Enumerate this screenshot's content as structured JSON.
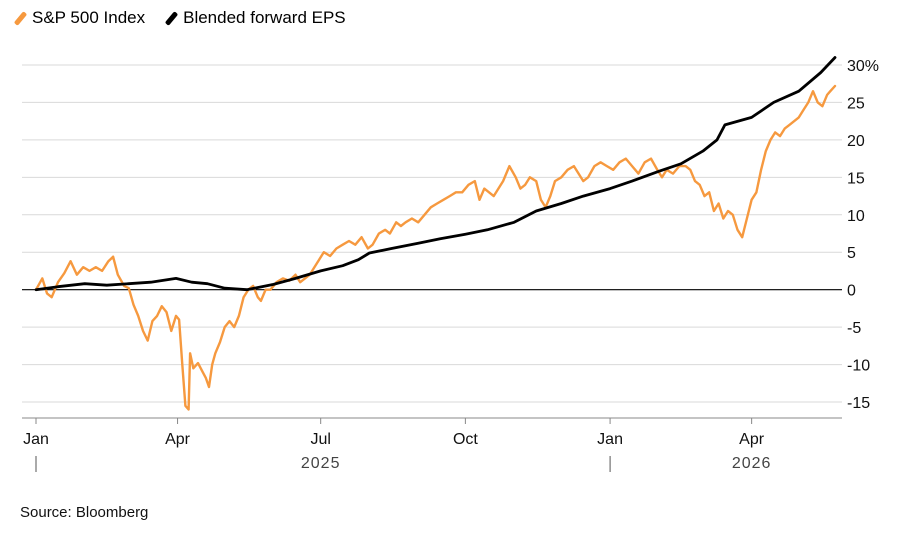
{
  "legend": {
    "items": [
      {
        "label": "S&P 500 Index",
        "color": "#f6993f"
      },
      {
        "label": "Blended forward EPS",
        "color": "#000000"
      }
    ]
  },
  "source": "Source: Bloomberg",
  "chart_data": {
    "type": "line",
    "title": "",
    "xlabel": "",
    "ylabel": "",
    "unit": "%",
    "ylim": [
      -17,
      32
    ],
    "y_ticks": [
      {
        "value": 30,
        "label": "30%"
      },
      {
        "value": 25,
        "label": "25"
      },
      {
        "value": 20,
        "label": "20"
      },
      {
        "value": 15,
        "label": "15"
      },
      {
        "value": 10,
        "label": "10"
      },
      {
        "value": 5,
        "label": "5"
      },
      {
        "value": 0,
        "label": "0"
      },
      {
        "value": -5,
        "label": "-5"
      },
      {
        "value": -10,
        "label": "-10"
      },
      {
        "value": -15,
        "label": "-15"
      }
    ],
    "x_ticks": [
      {
        "date": "2025-01-01",
        "label": "Jan"
      },
      {
        "date": "2025-04-01",
        "label": "Apr"
      },
      {
        "date": "2025-07-01",
        "label": "Jul"
      },
      {
        "date": "2025-10-01",
        "label": "Oct"
      },
      {
        "date": "2026-01-01",
        "label": "Jan"
      },
      {
        "date": "2026-04-01",
        "label": "Apr"
      }
    ],
    "year_labels": [
      {
        "date": "2025-07-01",
        "label": "2025"
      },
      {
        "date": "2026-04-01",
        "label": "2026"
      }
    ],
    "year_separators": [
      "2025-01-01",
      "2026-01-01"
    ],
    "grid": true,
    "legend_position": "top-left",
    "series": [
      {
        "name": "S&P 500 Index",
        "color": "#f6993f",
        "points": [
          [
            "2025-01-01",
            0
          ],
          [
            "2025-01-05",
            1.5
          ],
          [
            "2025-01-08",
            -0.5
          ],
          [
            "2025-01-11",
            -1.0
          ],
          [
            "2025-01-15",
            1.0
          ],
          [
            "2025-01-19",
            2.2
          ],
          [
            "2025-01-23",
            3.8
          ],
          [
            "2025-01-27",
            2.0
          ],
          [
            "2025-01-31",
            3.0
          ],
          [
            "2025-02-04",
            2.5
          ],
          [
            "2025-02-08",
            3.0
          ],
          [
            "2025-02-12",
            2.5
          ],
          [
            "2025-02-16",
            3.8
          ],
          [
            "2025-02-19",
            4.4
          ],
          [
            "2025-02-22",
            2.0
          ],
          [
            "2025-02-26",
            0.5
          ],
          [
            "2025-03-01",
            0.2
          ],
          [
            "2025-03-04",
            -2.0
          ],
          [
            "2025-03-07",
            -3.5
          ],
          [
            "2025-03-10",
            -5.5
          ],
          [
            "2025-03-13",
            -6.8
          ],
          [
            "2025-03-16",
            -4.2
          ],
          [
            "2025-03-19",
            -3.5
          ],
          [
            "2025-03-22",
            -2.2
          ],
          [
            "2025-03-25",
            -3.0
          ],
          [
            "2025-03-28",
            -5.5
          ],
          [
            "2025-03-31",
            -3.5
          ],
          [
            "2025-04-02",
            -4.0
          ],
          [
            "2025-04-04",
            -10.0
          ],
          [
            "2025-04-06",
            -15.5
          ],
          [
            "2025-04-08",
            -16.0
          ],
          [
            "2025-04-09",
            -8.5
          ],
          [
            "2025-04-11",
            -10.5
          ],
          [
            "2025-04-14",
            -9.8
          ],
          [
            "2025-04-17",
            -11.0
          ],
          [
            "2025-04-19",
            -11.8
          ],
          [
            "2025-04-21",
            -13.0
          ],
          [
            "2025-04-23",
            -10.0
          ],
          [
            "2025-04-25",
            -8.5
          ],
          [
            "2025-04-28",
            -7.0
          ],
          [
            "2025-05-01",
            -5.0
          ],
          [
            "2025-05-04",
            -4.2
          ],
          [
            "2025-05-07",
            -5.0
          ],
          [
            "2025-05-10",
            -3.5
          ],
          [
            "2025-05-13",
            -1.0
          ],
          [
            "2025-05-16",
            0.0
          ],
          [
            "2025-05-19",
            0.5
          ],
          [
            "2025-05-22",
            -1.0
          ],
          [
            "2025-05-24",
            -1.5
          ],
          [
            "2025-05-27",
            0.0
          ],
          [
            "2025-05-30",
            0.0
          ],
          [
            "2025-06-03",
            1.0
          ],
          [
            "2025-06-07",
            1.5
          ],
          [
            "2025-06-11",
            1.2
          ],
          [
            "2025-06-15",
            2.0
          ],
          [
            "2025-06-18",
            1.0
          ],
          [
            "2025-06-21",
            1.5
          ],
          [
            "2025-06-24",
            2.0
          ],
          [
            "2025-06-27",
            3.0
          ],
          [
            "2025-06-30",
            4.0
          ],
          [
            "2025-07-03",
            5.0
          ],
          [
            "2025-07-07",
            4.5
          ],
          [
            "2025-07-11",
            5.5
          ],
          [
            "2025-07-15",
            6.0
          ],
          [
            "2025-07-19",
            6.5
          ],
          [
            "2025-07-23",
            6.0
          ],
          [
            "2025-07-27",
            7.0
          ],
          [
            "2025-07-31",
            5.5
          ],
          [
            "2025-08-03",
            6.0
          ],
          [
            "2025-08-07",
            7.5
          ],
          [
            "2025-08-11",
            8.0
          ],
          [
            "2025-08-14",
            7.5
          ],
          [
            "2025-08-18",
            9.0
          ],
          [
            "2025-08-21",
            8.5
          ],
          [
            "2025-08-24",
            9.0
          ],
          [
            "2025-08-28",
            9.5
          ],
          [
            "2025-09-01",
            9.0
          ],
          [
            "2025-09-05",
            10.0
          ],
          [
            "2025-09-09",
            11.0
          ],
          [
            "2025-09-13",
            11.5
          ],
          [
            "2025-09-17",
            12.0
          ],
          [
            "2025-09-21",
            12.5
          ],
          [
            "2025-09-25",
            13.0
          ],
          [
            "2025-09-29",
            13.0
          ],
          [
            "2025-10-03",
            14.0
          ],
          [
            "2025-10-07",
            14.5
          ],
          [
            "2025-10-10",
            12.0
          ],
          [
            "2025-10-13",
            13.5
          ],
          [
            "2025-10-16",
            13.0
          ],
          [
            "2025-10-19",
            12.5
          ],
          [
            "2025-10-22",
            13.5
          ],
          [
            "2025-10-25",
            14.5
          ],
          [
            "2025-10-29",
            16.5
          ],
          [
            "2025-11-02",
            15.0
          ],
          [
            "2025-11-05",
            13.5
          ],
          [
            "2025-11-08",
            14.0
          ],
          [
            "2025-11-11",
            15.0
          ],
          [
            "2025-11-15",
            14.5
          ],
          [
            "2025-11-18",
            12.0
          ],
          [
            "2025-11-21",
            11.0
          ],
          [
            "2025-11-24",
            12.5
          ],
          [
            "2025-11-27",
            14.5
          ],
          [
            "2025-12-01",
            15.0
          ],
          [
            "2025-12-05",
            16.0
          ],
          [
            "2025-12-09",
            16.5
          ],
          [
            "2025-12-12",
            15.5
          ],
          [
            "2025-12-15",
            14.5
          ],
          [
            "2025-12-18",
            15.0
          ],
          [
            "2025-12-22",
            16.5
          ],
          [
            "2025-12-26",
            17.0
          ],
          [
            "2025-12-30",
            16.5
          ],
          [
            "2026-01-03",
            16.0
          ],
          [
            "2026-01-07",
            17.0
          ],
          [
            "2026-01-11",
            17.5
          ],
          [
            "2026-01-15",
            16.5
          ],
          [
            "2026-01-19",
            15.5
          ],
          [
            "2026-01-23",
            17.0
          ],
          [
            "2026-01-27",
            17.5
          ],
          [
            "2026-01-31",
            16.0
          ],
          [
            "2026-02-03",
            15.0
          ],
          [
            "2026-02-06",
            16.0
          ],
          [
            "2026-02-10",
            15.5
          ],
          [
            "2026-02-14",
            16.5
          ],
          [
            "2026-02-18",
            16.5
          ],
          [
            "2026-02-21",
            16.0
          ],
          [
            "2026-02-24",
            14.5
          ],
          [
            "2026-02-27",
            14.0
          ],
          [
            "2026-03-02",
            12.5
          ],
          [
            "2026-03-05",
            13.0
          ],
          [
            "2026-03-08",
            10.5
          ],
          [
            "2026-03-11",
            11.5
          ],
          [
            "2026-03-14",
            9.5
          ],
          [
            "2026-03-17",
            10.5
          ],
          [
            "2026-03-20",
            10.0
          ],
          [
            "2026-03-23",
            8.0
          ],
          [
            "2026-03-26",
            7.0
          ],
          [
            "2026-03-29",
            9.5
          ],
          [
            "2026-04-01",
            12.0
          ],
          [
            "2026-04-04",
            13.0
          ],
          [
            "2026-04-07",
            16.0
          ],
          [
            "2026-04-10",
            18.5
          ],
          [
            "2026-04-13",
            20.0
          ],
          [
            "2026-04-16",
            21.0
          ],
          [
            "2026-04-19",
            20.5
          ],
          [
            "2026-04-22",
            21.5
          ],
          [
            "2026-04-25",
            22.0
          ],
          [
            "2026-04-28",
            22.5
          ],
          [
            "2026-05-01",
            23.0
          ],
          [
            "2026-05-04",
            24.0
          ],
          [
            "2026-05-07",
            25.0
          ],
          [
            "2026-05-10",
            26.5
          ],
          [
            "2026-05-13",
            25.0
          ],
          [
            "2026-05-16",
            24.5
          ],
          [
            "2026-05-19",
            26.0
          ],
          [
            "2026-05-21",
            26.5
          ],
          [
            "2026-05-24",
            27.2
          ]
        ]
      },
      {
        "name": "Blended forward EPS",
        "color": "#000000",
        "points": [
          [
            "2025-01-01",
            0
          ],
          [
            "2025-01-15",
            0.4
          ],
          [
            "2025-02-01",
            0.8
          ],
          [
            "2025-02-15",
            0.6
          ],
          [
            "2025-03-01",
            0.8
          ],
          [
            "2025-03-15",
            1.0
          ],
          [
            "2025-03-31",
            1.5
          ],
          [
            "2025-04-10",
            1.0
          ],
          [
            "2025-04-20",
            0.8
          ],
          [
            "2025-05-01",
            0.2
          ],
          [
            "2025-05-15",
            0.0
          ],
          [
            "2025-06-01",
            0.7
          ],
          [
            "2025-06-15",
            1.5
          ],
          [
            "2025-07-01",
            2.5
          ],
          [
            "2025-07-15",
            3.2
          ],
          [
            "2025-07-25",
            4.0
          ],
          [
            "2025-08-01",
            4.9
          ],
          [
            "2025-08-15",
            5.5
          ],
          [
            "2025-09-01",
            6.2
          ],
          [
            "2025-09-15",
            6.8
          ],
          [
            "2025-10-01",
            7.4
          ],
          [
            "2025-10-15",
            8.0
          ],
          [
            "2025-11-01",
            9.0
          ],
          [
            "2025-11-15",
            10.5
          ],
          [
            "2025-12-01",
            11.5
          ],
          [
            "2025-12-15",
            12.5
          ],
          [
            "2026-01-01",
            13.5
          ],
          [
            "2026-01-15",
            14.5
          ],
          [
            "2026-02-01",
            15.8
          ],
          [
            "2026-02-15",
            16.8
          ],
          [
            "2026-03-01",
            18.5
          ],
          [
            "2026-03-10",
            20.0
          ],
          [
            "2026-03-15",
            22.0
          ],
          [
            "2026-04-01",
            23.0
          ],
          [
            "2026-04-15",
            25.0
          ],
          [
            "2026-05-01",
            26.5
          ],
          [
            "2026-05-15",
            29.0
          ],
          [
            "2026-05-24",
            31.0
          ]
        ]
      }
    ]
  }
}
